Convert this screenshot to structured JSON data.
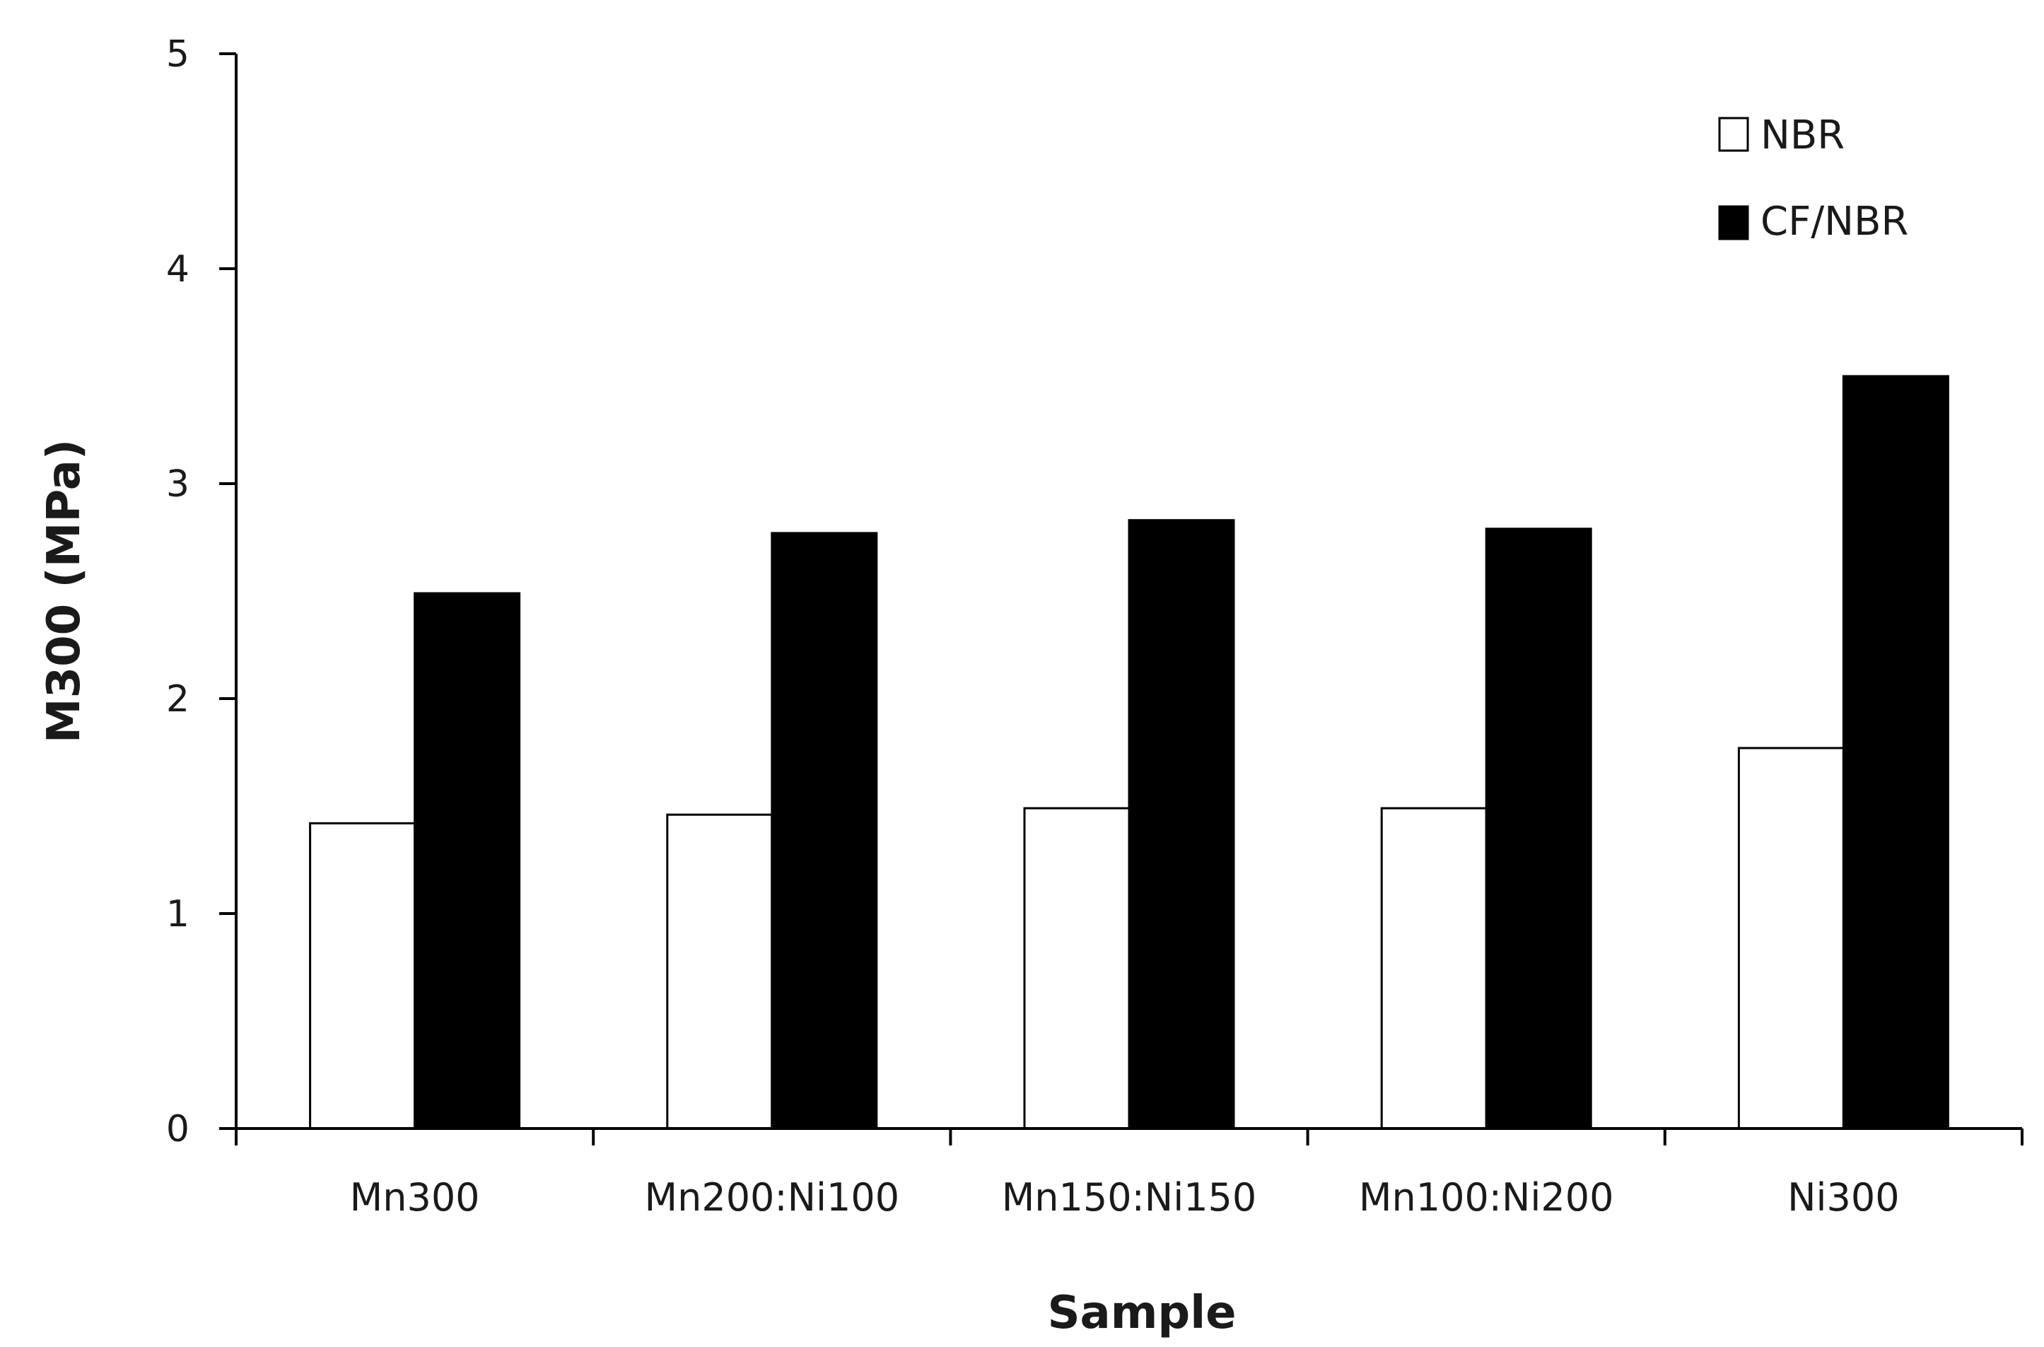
{
  "chart_data": {
    "type": "bar",
    "title": "",
    "xlabel": "Sample",
    "ylabel": "M300 (MPa)",
    "ylim": [
      0,
      5
    ],
    "yticks": [
      0,
      1,
      2,
      3,
      4,
      5
    ],
    "grid": false,
    "legend_position": "top-right",
    "categories": [
      "Mn300",
      "Mn200:Ni100",
      "Mn150:Ni150",
      "Mn100:Ni200",
      "Ni300"
    ],
    "series": [
      {
        "name": "NBR",
        "values": [
          1.42,
          1.46,
          1.49,
          1.49,
          1.77
        ],
        "color": "#ffffff",
        "stroke": "#000000"
      },
      {
        "name": "CF/NBR",
        "values": [
          2.49,
          2.77,
          2.83,
          2.79,
          3.5
        ],
        "color": "#000000",
        "stroke": "#000000"
      }
    ]
  }
}
